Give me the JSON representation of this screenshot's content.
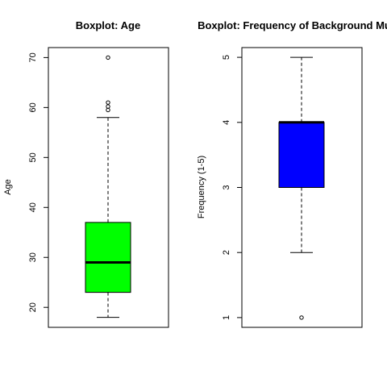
{
  "chart_data": [
    {
      "type": "box",
      "title": "Boxplot: Age",
      "ylabel": "Age",
      "xlabel": "",
      "ylim": [
        16,
        72
      ],
      "yticks": [
        20,
        30,
        40,
        50,
        60,
        70
      ],
      "box": {
        "whisker_low": 18,
        "q1": 23,
        "median": 29,
        "q3": 37,
        "whisker_high": 58,
        "outliers": [
          59.5,
          60.2,
          61,
          70
        ],
        "fill": "#00ff00"
      }
    },
    {
      "type": "box",
      "title": "Boxplot: Frequency of Background Music",
      "ylabel": "Frequency (1-5)",
      "xlabel": "",
      "ylim": [
        0.85,
        5.15
      ],
      "yticks": [
        1,
        2,
        3,
        4,
        5
      ],
      "box": {
        "whisker_low": 2,
        "q1": 3,
        "median": 4,
        "q3": 4,
        "whisker_high": 5,
        "outliers": [
          1
        ],
        "fill": "#0000ff"
      }
    }
  ]
}
